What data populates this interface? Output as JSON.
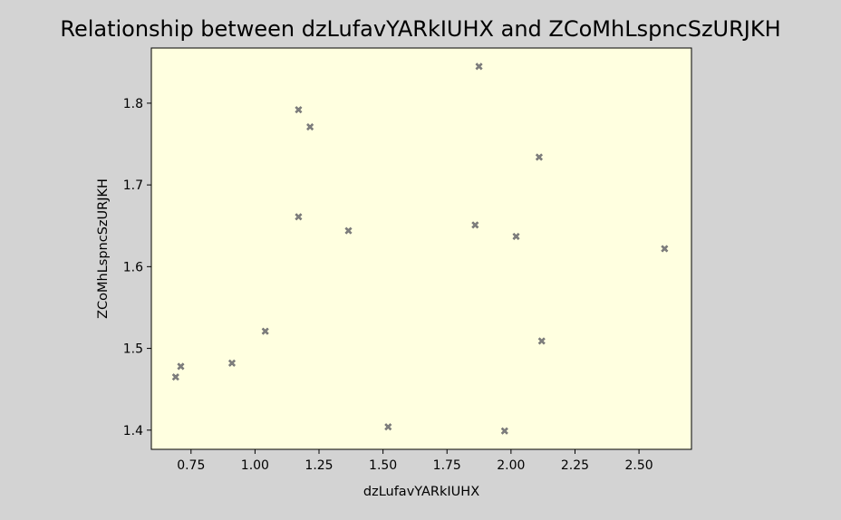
{
  "chart_data": {
    "type": "scatter",
    "title": "Relationship between dzLufavYARkIUHX and ZCoMhLspncSzURJKH",
    "xlabel": "dzLufavYARkIUHX",
    "ylabel": "ZCoMhLspncSzURJKH",
    "xlim": [
      0.595,
      2.705
    ],
    "ylim": [
      1.3765,
      1.8675
    ],
    "xticks": [
      "0.75",
      "1.00",
      "1.25",
      "1.50",
      "1.75",
      "2.00",
      "2.25",
      "2.50"
    ],
    "yticks": [
      "1.4",
      "1.5",
      "1.6",
      "1.7",
      "1.8"
    ],
    "grid": false,
    "marker": "X",
    "colors": {
      "figure_background": "#d3d3d3",
      "plot_background": "#ffffe0",
      "marker": "#808080"
    },
    "points": [
      {
        "x": 0.69,
        "y": 1.465
      },
      {
        "x": 0.71,
        "y": 1.478
      },
      {
        "x": 0.91,
        "y": 1.482
      },
      {
        "x": 1.04,
        "y": 1.521
      },
      {
        "x": 1.17,
        "y": 1.792
      },
      {
        "x": 1.17,
        "y": 1.661
      },
      {
        "x": 1.215,
        "y": 1.771
      },
      {
        "x": 1.365,
        "y": 1.644
      },
      {
        "x": 1.52,
        "y": 1.404
      },
      {
        "x": 1.86,
        "y": 1.651
      },
      {
        "x": 1.875,
        "y": 1.845
      },
      {
        "x": 1.975,
        "y": 1.399
      },
      {
        "x": 2.02,
        "y": 1.637
      },
      {
        "x": 2.11,
        "y": 1.734
      },
      {
        "x": 2.12,
        "y": 1.509
      },
      {
        "x": 2.6,
        "y": 1.622
      }
    ]
  }
}
